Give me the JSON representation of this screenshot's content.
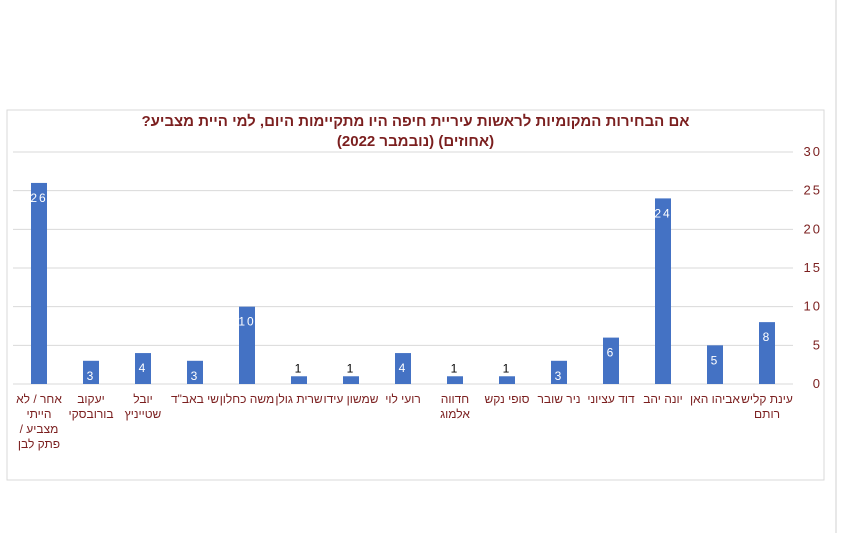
{
  "chart_data": {
    "type": "bar",
    "title": "אם הבחירות המקומיות לראשות עיריית חיפה היו מתקיימות היום, למי היית מצביע?",
    "subtitle": "(אחוזים) (נובמבר 2022)",
    "categories": [
      "עינת קליש רותם",
      "אביהו האן",
      "יונה יהב",
      "דוד עציוני",
      "ניר שובר",
      "סופי נקש",
      "חדווה אלמוג",
      "רועי לוי",
      "שמשון עידו",
      "שרית גולן",
      "משה כחלון",
      "שי באב\"ד",
      "יובל שטייניץ",
      "יעקוב בורובסקי",
      "אחר / לא הייתי מצביע / פתק לבן"
    ],
    "values": [
      8,
      5,
      24,
      6,
      3,
      1,
      1,
      4,
      1,
      1,
      10,
      3,
      4,
      3,
      26
    ],
    "color": "#4472c4",
    "ylim": [
      0,
      30
    ],
    "yticks": [
      0,
      5,
      10,
      15,
      20,
      25,
      30
    ],
    "grid": true,
    "y_axis_side": "right"
  }
}
